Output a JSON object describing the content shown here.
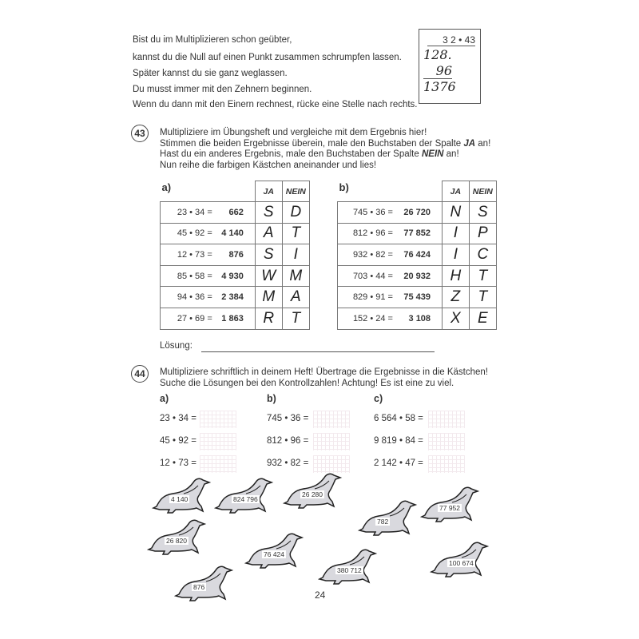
{
  "intro": {
    "lines": [
      "Bist du im Multiplizieren schon geübter,",
      "kannst du die Null auf einen Punkt zusammen schrumpfen lassen.",
      "Später kannst du sie ganz weglassen.",
      "Du  musst immer mit den Zehnern beginnen.",
      "Wenn du dann mit den Einern rechnest, rücke eine Stelle nach rechts."
    ],
    "example": {
      "problem": "3 2 • 43",
      "line1": "128.",
      "line2": "96",
      "result": "1376"
    }
  },
  "task43": {
    "number": "43",
    "lines": [
      "Multipliziere im Übungsheft und vergleiche mit dem Ergebnis hier!",
      "Stimmen die beiden Ergebnisse überein, male den Buchstaben der Spalte ",
      "JA",
      " an!",
      "Hast du ein anderes Ergebnis, male den Buchstaben der Spalte ",
      "NEIN",
      " an!",
      "Nun reihe die farbigen Kästchen aneinander und lies!"
    ],
    "col_ja": "JA",
    "col_nein": "NEIN",
    "tables": [
      {
        "label": "a)",
        "rows": [
          {
            "expr": "23 • 34 =",
            "result": "662",
            "ja": "S",
            "nein": "D"
          },
          {
            "expr": "45 • 92 =",
            "result": "4 140",
            "ja": "A",
            "nein": "T"
          },
          {
            "expr": "12 • 73 =",
            "result": "876",
            "ja": "S",
            "nein": "I"
          },
          {
            "expr": "85 • 58 =",
            "result": "4 930",
            "ja": "W",
            "nein": "M"
          },
          {
            "expr": "94 • 36 =",
            "result": "2 384",
            "ja": "M",
            "nein": "A"
          },
          {
            "expr": "27 • 69 =",
            "result": "1 863",
            "ja": "R",
            "nein": "T"
          }
        ]
      },
      {
        "label": "b)",
        "rows": [
          {
            "expr": "745 • 36 =",
            "result": "26 720",
            "ja": "N",
            "nein": "S"
          },
          {
            "expr": "812 • 96 =",
            "result": "77 852",
            "ja": "I",
            "nein": "P"
          },
          {
            "expr": "932 • 82 =",
            "result": "76 424",
            "ja": "I",
            "nein": "C"
          },
          {
            "expr": "703 • 44 =",
            "result": "20 932",
            "ja": "H",
            "nein": "T"
          },
          {
            "expr": "829 • 91 =",
            "result": "75 439",
            "ja": "Z",
            "nein": "T"
          },
          {
            "expr": "152 • 24 =",
            "result": "3 108",
            "ja": "X",
            "nein": "E"
          }
        ]
      }
    ],
    "solution_label": "Lösung:"
  },
  "task44": {
    "number": "44",
    "lines": [
      "Multipliziere schriftlich in deinem Heft! Übertrage die Ergebnisse in die Kästchen!",
      "Suche die Lösungen bei den Kontrollzahlen! Achtung! Es ist eine zu viel."
    ],
    "columns": [
      {
        "label": "a)",
        "items": [
          "23 • 34 =",
          "45 • 92 =",
          "12 • 73 ="
        ]
      },
      {
        "label": "b)",
        "items": [
          "745 • 36 =",
          "812 • 96 =",
          "932 • 82 ="
        ]
      },
      {
        "label": "c)",
        "items": [
          "6 564 • 58 =",
          "9 819 • 84 =",
          "2 142 • 47 ="
        ]
      }
    ],
    "control_numbers": [
      "4 140",
      "824 796",
      "26 280",
      "782",
      "77 952",
      "26 820",
      "76 424",
      "380 712",
      "100 674",
      "876"
    ]
  },
  "page_number": "24"
}
